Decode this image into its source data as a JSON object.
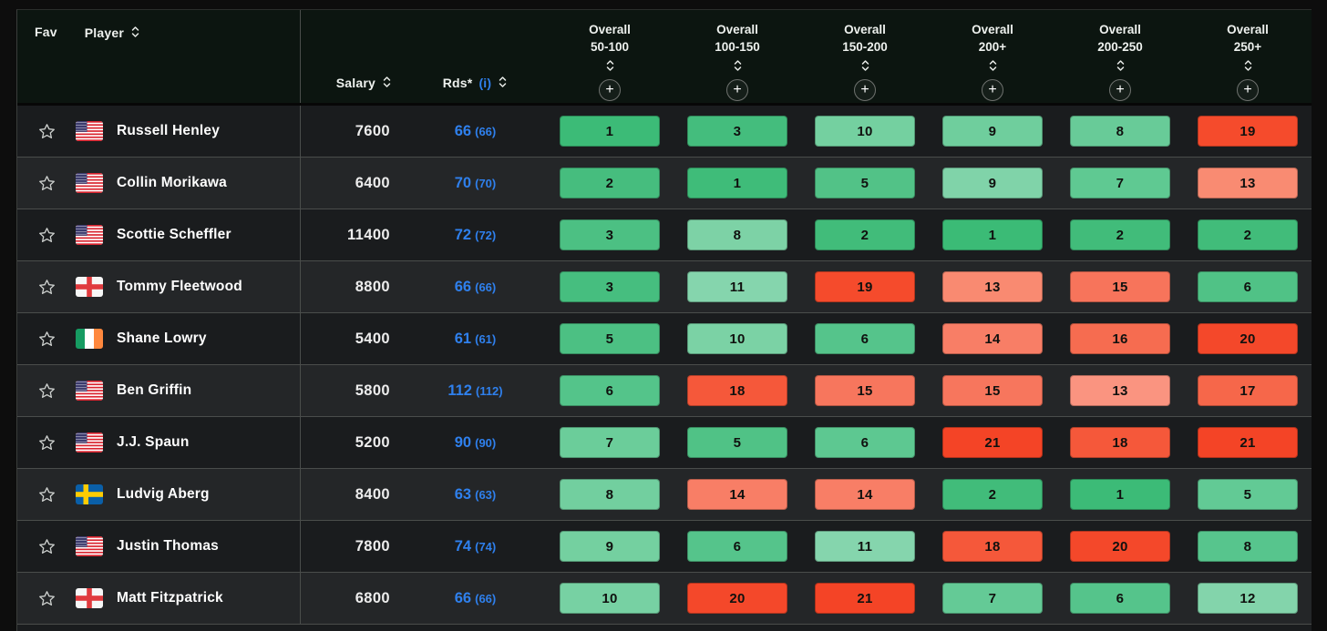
{
  "table": {
    "header": {
      "fav": "Fav",
      "player": "Player",
      "salary": "Salary",
      "rds_label": "Rds*",
      "rds_info": "(i)",
      "plus_label": "+",
      "overall_columns": [
        {
          "line1": "Overall",
          "line2": "50-100"
        },
        {
          "line1": "Overall",
          "line2": "100-150"
        },
        {
          "line1": "Overall",
          "line2": "150-200"
        },
        {
          "line1": "Overall",
          "line2": "200+"
        },
        {
          "line1": "Overall",
          "line2": "200-250"
        },
        {
          "line1": "Overall",
          "line2": "250+"
        }
      ]
    },
    "colors": {
      "accent_blue": "#2f80ed",
      "green_strong": "#3cbb77",
      "red_strong": "#f44426"
    },
    "rows": [
      {
        "player": "Russell Henley",
        "country": "usa",
        "salary": "7600",
        "rds": "66",
        "rds_paren": "(66)",
        "cells": [
          {
            "value": "1",
            "color": "#3cbb77"
          },
          {
            "value": "3",
            "color": "#44bd7d"
          },
          {
            "value": "10",
            "color": "#74d0a0"
          },
          {
            "value": "9",
            "color": "#6fce9d"
          },
          {
            "value": "8",
            "color": "#68cb98"
          },
          {
            "value": "19",
            "color": "#f54b2c"
          }
        ]
      },
      {
        "player": "Collin Morikawa",
        "country": "usa",
        "salary": "6400",
        "rds": "70",
        "rds_paren": "(70)",
        "cells": [
          {
            "value": "2",
            "color": "#46bd7e"
          },
          {
            "value": "1",
            "color": "#3fbc79"
          },
          {
            "value": "5",
            "color": "#52c287"
          },
          {
            "value": "9",
            "color": "#80d3a9"
          },
          {
            "value": "7",
            "color": "#5fc992"
          },
          {
            "value": "13",
            "color": "#f98b72"
          }
        ]
      },
      {
        "player": "Scottie Scheffler",
        "country": "usa",
        "salary": "11400",
        "rds": "72",
        "rds_paren": "(72)",
        "cells": [
          {
            "value": "3",
            "color": "#4cc083"
          },
          {
            "value": "8",
            "color": "#7dd2a6"
          },
          {
            "value": "2",
            "color": "#41bc7a"
          },
          {
            "value": "1",
            "color": "#3bbb76"
          },
          {
            "value": "2",
            "color": "#41bc7a"
          },
          {
            "value": "2",
            "color": "#41bc7a"
          }
        ]
      },
      {
        "player": "Tommy Fleetwood",
        "country": "england",
        "salary": "8800",
        "rds": "66",
        "rds_paren": "(66)",
        "cells": [
          {
            "value": "3",
            "color": "#46be7f"
          },
          {
            "value": "11",
            "color": "#85d5ad"
          },
          {
            "value": "19",
            "color": "#f54b2c"
          },
          {
            "value": "13",
            "color": "#f98a71"
          },
          {
            "value": "15",
            "color": "#f7745b"
          },
          {
            "value": "6",
            "color": "#50c286"
          }
        ]
      },
      {
        "player": "Shane Lowry",
        "country": "ireland",
        "salary": "5400",
        "rds": "61",
        "rds_paren": "(61)",
        "cells": [
          {
            "value": "5",
            "color": "#4cc083"
          },
          {
            "value": "10",
            "color": "#7bd2a5"
          },
          {
            "value": "6",
            "color": "#55c48b"
          },
          {
            "value": "14",
            "color": "#f87e66"
          },
          {
            "value": "16",
            "color": "#f66c50"
          },
          {
            "value": "20",
            "color": "#f4482a"
          }
        ]
      },
      {
        "player": "Ben Griffin",
        "country": "usa",
        "salary": "5800",
        "rds": "112",
        "rds_paren": "(112)",
        "cells": [
          {
            "value": "6",
            "color": "#54c48a"
          },
          {
            "value": "18",
            "color": "#f5583a"
          },
          {
            "value": "15",
            "color": "#f7765d"
          },
          {
            "value": "15",
            "color": "#f7765d"
          },
          {
            "value": "13",
            "color": "#fa9480"
          },
          {
            "value": "17",
            "color": "#f6674a"
          }
        ]
      },
      {
        "player": "J.J. Spaun",
        "country": "usa",
        "salary": "5200",
        "rds": "90",
        "rds_paren": "(90)",
        "cells": [
          {
            "value": "7",
            "color": "#6bcd9a"
          },
          {
            "value": "5",
            "color": "#50c286"
          },
          {
            "value": "6",
            "color": "#5dc891"
          },
          {
            "value": "21",
            "color": "#f44426"
          },
          {
            "value": "18",
            "color": "#f5583a"
          },
          {
            "value": "21",
            "color": "#f44426"
          }
        ]
      },
      {
        "player": "Ludvig Aberg",
        "country": "sweden",
        "salary": "8400",
        "rds": "63",
        "rds_paren": "(63)",
        "cells": [
          {
            "value": "8",
            "color": "#72cf9f"
          },
          {
            "value": "14",
            "color": "#f87e66"
          },
          {
            "value": "14",
            "color": "#f87e66"
          },
          {
            "value": "2",
            "color": "#41bc7a"
          },
          {
            "value": "1",
            "color": "#3cbb77"
          },
          {
            "value": "5",
            "color": "#62ca95"
          }
        ]
      },
      {
        "player": "Justin Thomas",
        "country": "usa",
        "salary": "7800",
        "rds": "74",
        "rds_paren": "(74)",
        "cells": [
          {
            "value": "9",
            "color": "#74d0a0"
          },
          {
            "value": "6",
            "color": "#55c48b"
          },
          {
            "value": "11",
            "color": "#85d5ad"
          },
          {
            "value": "18",
            "color": "#f5583a"
          },
          {
            "value": "20",
            "color": "#f4482a"
          },
          {
            "value": "8",
            "color": "#57c58d"
          }
        ]
      },
      {
        "player": "Matt Fitzpatrick",
        "country": "england",
        "salary": "6800",
        "rds": "66",
        "rds_paren": "(66)",
        "cells": [
          {
            "value": "10",
            "color": "#77d1a3"
          },
          {
            "value": "20",
            "color": "#f4482a"
          },
          {
            "value": "21",
            "color": "#f44426"
          },
          {
            "value": "7",
            "color": "#64ca96"
          },
          {
            "value": "6",
            "color": "#55c48b"
          },
          {
            "value": "12",
            "color": "#83d4ab"
          }
        ]
      }
    ]
  }
}
